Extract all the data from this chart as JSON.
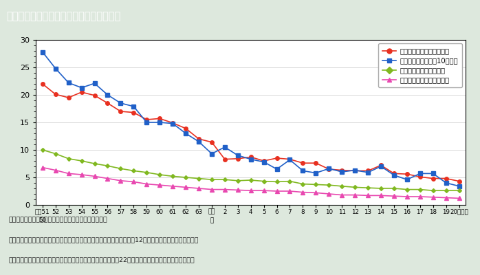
{
  "title": "第１－７－１図　母子保健関係指標の推移",
  "title_bg_color": "#8b7355",
  "title_text_color": "#ffffff",
  "bg_color": "#dde8dd",
  "plot_bg_color": "#ffffff",
  "note_lines": [
    "（備考）　１．厚生労働省「人口動態統計」より作成。",
    "　　　　　２．妊産婦死亡率における出産は，出生数に死産数（妊娠満12週以後）を加えたものである。",
    "　　　　　３．周産期死亡率における出産は，出生数に妊娠満22週以後の死産数を加えたものである。"
  ],
  "ylim": [
    0,
    30
  ],
  "yticks": [
    0,
    5,
    10,
    15,
    20,
    25,
    30
  ],
  "series": [
    {
      "name": "周産期死亡率（出産千対）",
      "color": "#e83020",
      "marker": "o",
      "markersize": 4,
      "values": [
        22.0,
        20.1,
        19.5,
        20.5,
        19.9,
        18.5,
        17.0,
        16.8,
        15.5,
        15.7,
        14.9,
        13.9,
        12.0,
        11.4,
        8.3,
        8.4,
        8.7,
        8.0,
        8.5,
        8.3,
        7.6,
        7.6,
        6.5,
        6.3,
        6.2,
        6.2,
        7.2,
        5.7,
        5.6,
        5.1,
        4.8,
        4.8,
        4.3
      ]
    },
    {
      "name": "妊産婦死亡率（出産10万対）",
      "color": "#2060c8",
      "marker": "s",
      "markersize": 4,
      "values": [
        27.8,
        24.8,
        22.2,
        21.3,
        22.1,
        20.0,
        18.5,
        17.9,
        15.0,
        15.0,
        14.8,
        13.0,
        11.5,
        9.3,
        10.5,
        9.0,
        8.3,
        7.8,
        6.5,
        8.2,
        6.2,
        5.8,
        6.6,
        6.0,
        6.3,
        5.9,
        7.0,
        5.4,
        4.6,
        5.7,
        5.7,
        4.0,
        3.4
      ]
    },
    {
      "name": "乳児死亡率（出生千対）",
      "color": "#80b820",
      "marker": "D",
      "markersize": 3,
      "values": [
        10.0,
        9.3,
        8.4,
        8.0,
        7.5,
        7.1,
        6.6,
        6.2,
        5.9,
        5.5,
        5.2,
        5.0,
        4.8,
        4.6,
        4.6,
        4.4,
        4.5,
        4.3,
        4.2,
        4.3,
        3.8,
        3.7,
        3.6,
        3.4,
        3.2,
        3.1,
        3.0,
        3.0,
        2.8,
        2.8,
        2.6,
        2.6,
        2.6
      ]
    },
    {
      "name": "新生児死亡率（出生千対）",
      "color": "#e848b0",
      "marker": "^",
      "markersize": 4,
      "values": [
        6.8,
        6.3,
        5.7,
        5.5,
        5.2,
        4.8,
        4.4,
        4.2,
        3.8,
        3.6,
        3.4,
        3.2,
        3.0,
        2.8,
        2.8,
        2.7,
        2.6,
        2.6,
        2.5,
        2.5,
        2.3,
        2.2,
        2.0,
        1.8,
        1.8,
        1.7,
        1.7,
        1.6,
        1.5,
        1.5,
        1.4,
        1.3,
        1.2
      ]
    }
  ]
}
